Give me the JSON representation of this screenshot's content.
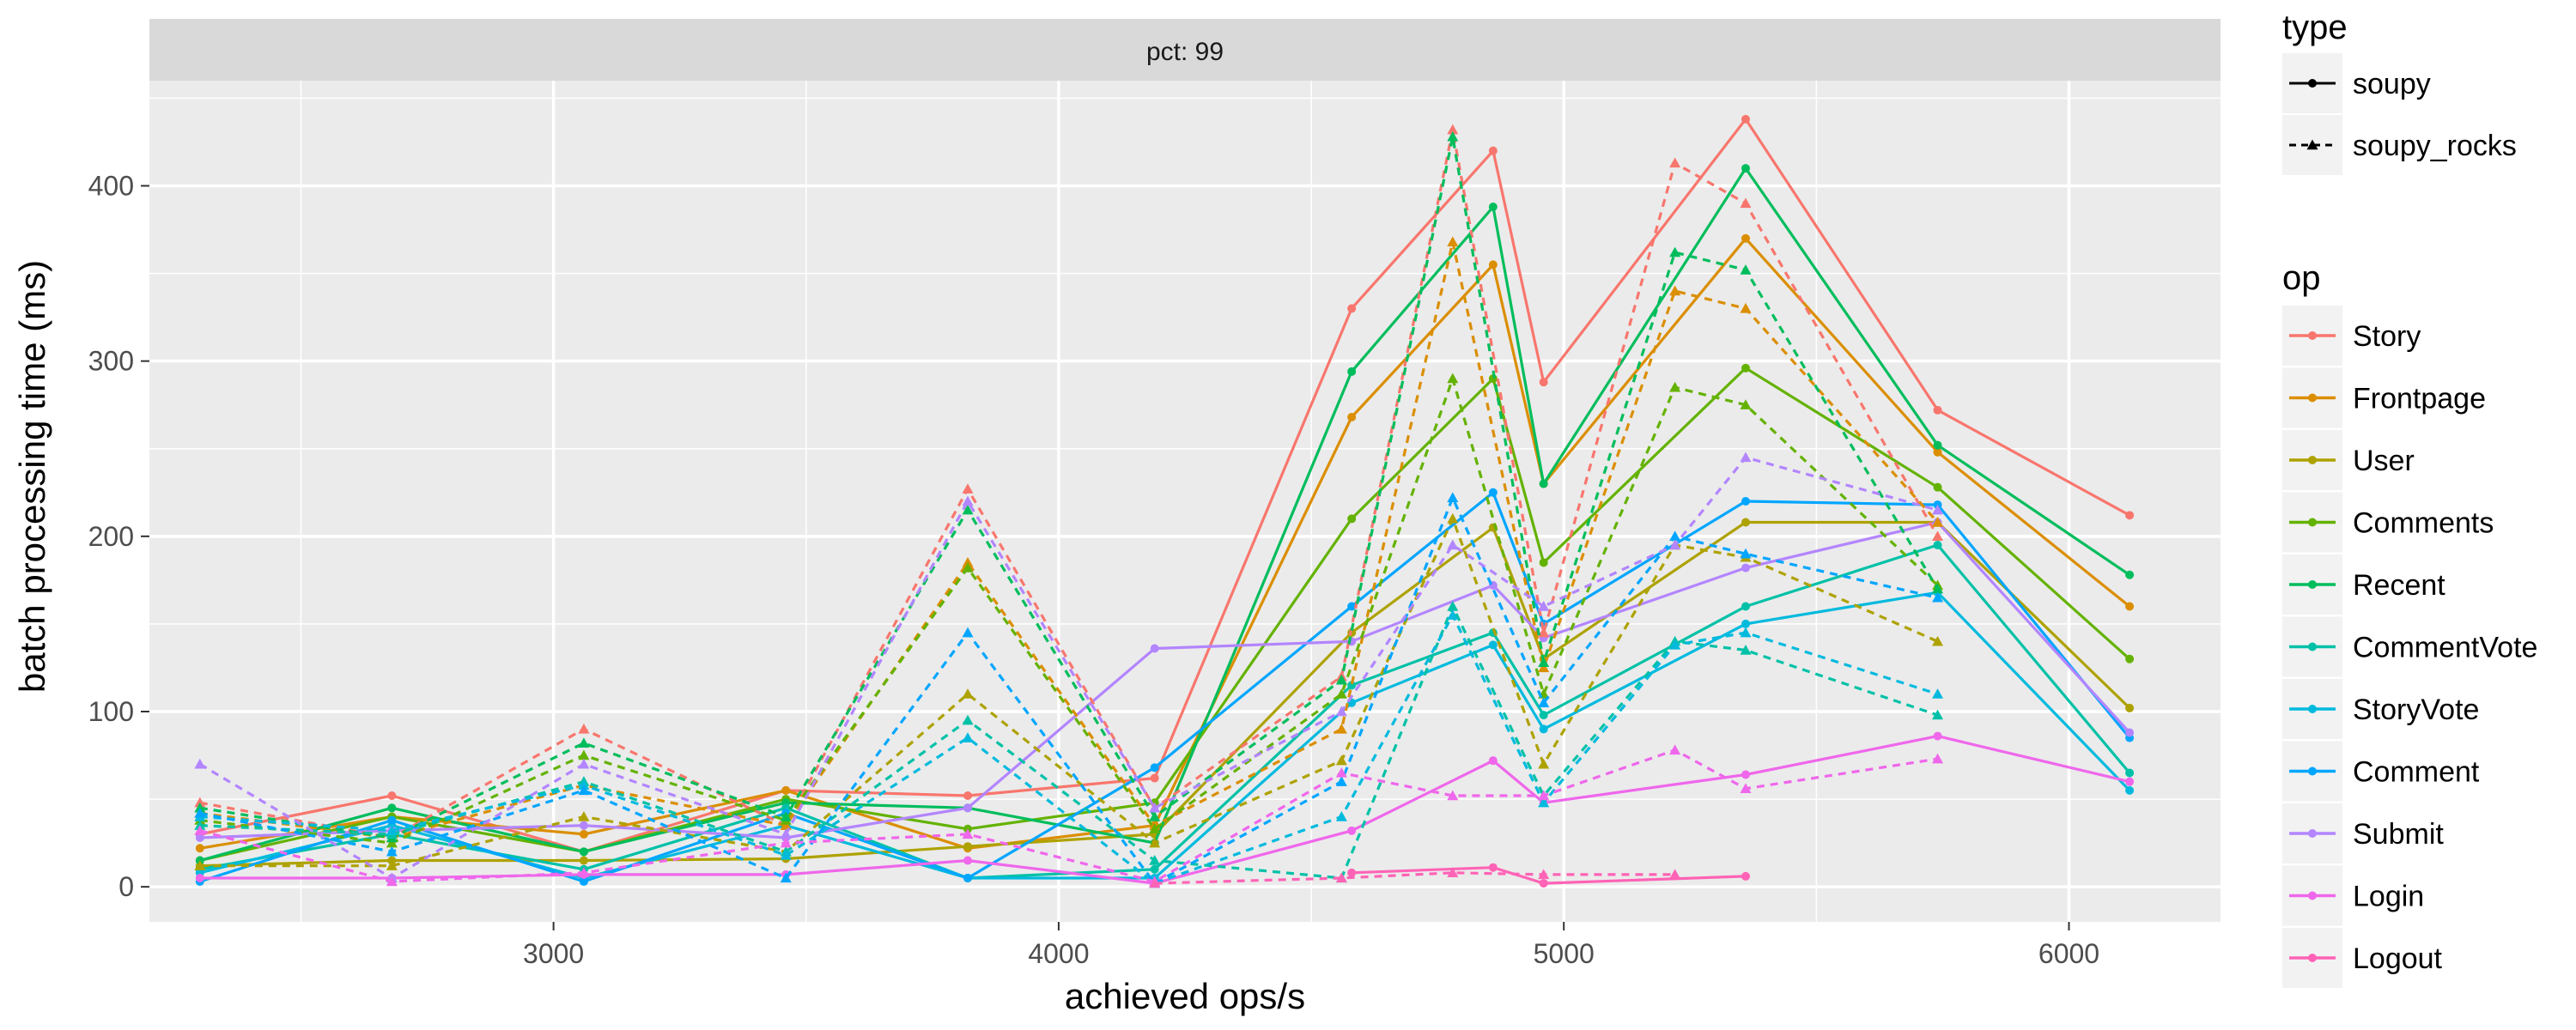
{
  "chart_data": {
    "type": "line",
    "facet_label": "pct: 99",
    "xlabel": "achieved ops/s",
    "ylabel": "batch processing time (ms)",
    "xlim": [
      2200,
      6300
    ],
    "ylim": [
      -20,
      460
    ],
    "x_ticks": [
      3000,
      4000,
      5000,
      6000
    ],
    "y_ticks": [
      0,
      100,
      200,
      300,
      400
    ],
    "grid": true,
    "legend_type_title": "type",
    "legend_op_title": "op",
    "types": [
      {
        "name": "soupy",
        "dash": "solid",
        "marker": "circle"
      },
      {
        "name": "soupy_rocks",
        "dash": "dashed",
        "marker": "triangle"
      }
    ],
    "ops": [
      {
        "name": "Story",
        "color": "#F8766D"
      },
      {
        "name": "Frontpage",
        "color": "#DB8E00"
      },
      {
        "name": "User",
        "color": "#AEA200"
      },
      {
        "name": "Comments",
        "color": "#64B200"
      },
      {
        "name": "Recent",
        "color": "#00BD5C"
      },
      {
        "name": "CommentVote",
        "color": "#00C1A7"
      },
      {
        "name": "StoryVote",
        "color": "#00BADE"
      },
      {
        "name": "Comment",
        "color": "#00A6FF"
      },
      {
        "name": "Submit",
        "color": "#B385FF"
      },
      {
        "name": "Login",
        "color": "#EF67EB"
      },
      {
        "name": "Logout",
        "color": "#FF63B6"
      }
    ],
    "series": [
      {
        "op": "Story",
        "type": "soupy",
        "points": [
          [
            2300,
            30
          ],
          [
            2680,
            52
          ],
          [
            3060,
            20
          ],
          [
            3460,
            55
          ],
          [
            3820,
            52
          ],
          [
            4190,
            62
          ],
          [
            4580,
            330
          ],
          [
            4860,
            420
          ],
          [
            4960,
            288
          ],
          [
            5360,
            438
          ],
          [
            5740,
            272
          ],
          [
            6120,
            212
          ]
        ]
      },
      {
        "op": "Frontpage",
        "type": "soupy",
        "points": [
          [
            2300,
            22
          ],
          [
            2680,
            40
          ],
          [
            3060,
            30
          ],
          [
            3460,
            55
          ],
          [
            3820,
            22
          ],
          [
            4190,
            35
          ],
          [
            4580,
            268
          ],
          [
            4860,
            355
          ],
          [
            4960,
            230
          ],
          [
            5360,
            370
          ],
          [
            5740,
            248
          ],
          [
            6120,
            160
          ]
        ]
      },
      {
        "op": "User",
        "type": "soupy",
        "points": [
          [
            2300,
            12
          ],
          [
            2680,
            15
          ],
          [
            3060,
            15
          ],
          [
            3460,
            16
          ],
          [
            3820,
            23
          ],
          [
            4190,
            30
          ],
          [
            4580,
            145
          ],
          [
            4860,
            205
          ],
          [
            4960,
            130
          ],
          [
            5360,
            208
          ],
          [
            5740,
            208
          ],
          [
            6120,
            102
          ]
        ]
      },
      {
        "op": "Comments",
        "type": "soupy",
        "points": [
          [
            2300,
            15
          ],
          [
            2680,
            40
          ],
          [
            3060,
            20
          ],
          [
            3460,
            50
          ],
          [
            3820,
            33
          ],
          [
            4190,
            48
          ],
          [
            4580,
            210
          ],
          [
            4860,
            290
          ],
          [
            4960,
            185
          ],
          [
            5360,
            296
          ],
          [
            5740,
            228
          ],
          [
            6120,
            130
          ]
        ]
      },
      {
        "op": "Recent",
        "type": "soupy",
        "points": [
          [
            2300,
            15
          ],
          [
            2680,
            45
          ],
          [
            3060,
            20
          ],
          [
            3460,
            48
          ],
          [
            3820,
            45
          ],
          [
            4190,
            25
          ],
          [
            4580,
            294
          ],
          [
            4860,
            388
          ],
          [
            4960,
            230
          ],
          [
            5360,
            410
          ],
          [
            5740,
            252
          ],
          [
            6120,
            178
          ]
        ]
      },
      {
        "op": "CommentVote",
        "type": "soupy",
        "points": [
          [
            2300,
            10
          ],
          [
            2680,
            30
          ],
          [
            3060,
            10
          ],
          [
            3460,
            45
          ],
          [
            3820,
            5
          ],
          [
            4190,
            10
          ],
          [
            4580,
            115
          ],
          [
            4860,
            145
          ],
          [
            4960,
            98
          ],
          [
            5360,
            160
          ],
          [
            5740,
            195
          ],
          [
            6120,
            65
          ]
        ]
      },
      {
        "op": "StoryVote",
        "type": "soupy",
        "points": [
          [
            2300,
            8
          ],
          [
            2680,
            35
          ],
          [
            3060,
            5
          ],
          [
            3460,
            35
          ],
          [
            3820,
            5
          ],
          [
            4190,
            5
          ],
          [
            4580,
            105
          ],
          [
            4860,
            138
          ],
          [
            4960,
            90
          ],
          [
            5360,
            150
          ],
          [
            5740,
            168
          ],
          [
            6120,
            55
          ]
        ]
      },
      {
        "op": "Comment",
        "type": "soupy",
        "points": [
          [
            2300,
            3
          ],
          [
            2680,
            38
          ],
          [
            3060,
            3
          ],
          [
            3460,
            42
          ],
          [
            3820,
            5
          ],
          [
            4190,
            68
          ],
          [
            4580,
            160
          ],
          [
            4860,
            225
          ],
          [
            4960,
            150
          ],
          [
            5360,
            220
          ],
          [
            5740,
            218
          ],
          [
            6120,
            85
          ]
        ]
      },
      {
        "op": "Submit",
        "type": "soupy",
        "points": [
          [
            2300,
            28
          ],
          [
            2680,
            32
          ],
          [
            3060,
            35
          ],
          [
            3460,
            28
          ],
          [
            3820,
            45
          ],
          [
            4190,
            136
          ],
          [
            4580,
            140
          ],
          [
            4860,
            172
          ],
          [
            4960,
            142
          ],
          [
            5360,
            182
          ],
          [
            5740,
            208
          ],
          [
            6120,
            88
          ]
        ]
      },
      {
        "op": "Login",
        "type": "soupy",
        "points": [
          [
            2300,
            5
          ],
          [
            2680,
            5
          ],
          [
            3060,
            7
          ],
          [
            3460,
            7
          ],
          [
            3820,
            15
          ],
          [
            4190,
            2
          ],
          [
            4580,
            32
          ],
          [
            4860,
            72
          ],
          [
            4960,
            48
          ],
          [
            5360,
            64
          ],
          [
            5740,
            86
          ],
          [
            6120,
            60
          ]
        ]
      },
      {
        "op": "Logout",
        "type": "soupy",
        "points": [
          [
            4580,
            8
          ],
          [
            4860,
            11
          ],
          [
            4960,
            2
          ],
          [
            5360,
            6
          ]
        ]
      },
      {
        "op": "Story",
        "type": "soupy_rocks",
        "points": [
          [
            2300,
            48
          ],
          [
            2680,
            28
          ],
          [
            3060,
            90
          ],
          [
            3460,
            35
          ],
          [
            3820,
            227
          ],
          [
            4190,
            45
          ],
          [
            4560,
            120
          ],
          [
            4780,
            432
          ],
          [
            4960,
            145
          ],
          [
            5220,
            413
          ],
          [
            5360,
            390
          ],
          [
            5740,
            200
          ]
        ]
      },
      {
        "op": "Frontpage",
        "type": "soupy_rocks",
        "points": [
          [
            2300,
            42
          ],
          [
            2680,
            28
          ],
          [
            3060,
            58
          ],
          [
            3460,
            35
          ],
          [
            3820,
            185
          ],
          [
            4190,
            35
          ],
          [
            4560,
            90
          ],
          [
            4780,
            368
          ],
          [
            4960,
            125
          ],
          [
            5220,
            340
          ],
          [
            5360,
            330
          ],
          [
            5740,
            208
          ]
        ]
      },
      {
        "op": "User",
        "type": "soupy_rocks",
        "points": [
          [
            2300,
            12
          ],
          [
            2680,
            12
          ],
          [
            3060,
            40
          ],
          [
            3460,
            20
          ],
          [
            3820,
            110
          ],
          [
            4190,
            25
          ],
          [
            4560,
            72
          ],
          [
            4780,
            210
          ],
          [
            4960,
            70
          ],
          [
            5220,
            195
          ],
          [
            5360,
            188
          ],
          [
            5740,
            140
          ]
        ]
      },
      {
        "op": "Comments",
        "type": "soupy_rocks",
        "points": [
          [
            2300,
            38
          ],
          [
            2680,
            25
          ],
          [
            3060,
            75
          ],
          [
            3460,
            38
          ],
          [
            3820,
            182
          ],
          [
            4190,
            33
          ],
          [
            4560,
            110
          ],
          [
            4780,
            290
          ],
          [
            4960,
            110
          ],
          [
            5220,
            285
          ],
          [
            5360,
            275
          ],
          [
            5740,
            172
          ]
        ]
      },
      {
        "op": "Recent",
        "type": "soupy_rocks",
        "points": [
          [
            2300,
            45
          ],
          [
            2680,
            28
          ],
          [
            3060,
            82
          ],
          [
            3460,
            40
          ],
          [
            3820,
            215
          ],
          [
            4190,
            40
          ],
          [
            4560,
            118
          ],
          [
            4780,
            428
          ],
          [
            4960,
            128
          ],
          [
            5220,
            362
          ],
          [
            5360,
            352
          ],
          [
            5740,
            170
          ]
        ]
      },
      {
        "op": "CommentVote",
        "type": "soupy_rocks",
        "points": [
          [
            2300,
            35
          ],
          [
            2680,
            30
          ],
          [
            3060,
            60
          ],
          [
            3460,
            20
          ],
          [
            3820,
            95
          ],
          [
            4190,
            15
          ],
          [
            4560,
            5
          ],
          [
            4780,
            160
          ],
          [
            4960,
            52
          ],
          [
            5220,
            140
          ],
          [
            5360,
            135
          ],
          [
            5740,
            98
          ]
        ]
      },
      {
        "op": "StoryVote",
        "type": "soupy_rocks",
        "points": [
          [
            2300,
            40
          ],
          [
            2680,
            32
          ],
          [
            3060,
            58
          ],
          [
            3460,
            18
          ],
          [
            3820,
            85
          ],
          [
            4190,
            2
          ],
          [
            4560,
            40
          ],
          [
            4780,
            155
          ],
          [
            4960,
            48
          ],
          [
            5220,
            138
          ],
          [
            5360,
            145
          ],
          [
            5740,
            110
          ]
        ]
      },
      {
        "op": "Comment",
        "type": "soupy_rocks",
        "points": [
          [
            2300,
            42
          ],
          [
            2680,
            20
          ],
          [
            3060,
            55
          ],
          [
            3460,
            5
          ],
          [
            3820,
            145
          ],
          [
            4190,
            2
          ],
          [
            4560,
            60
          ],
          [
            4780,
            222
          ],
          [
            4960,
            105
          ],
          [
            5220,
            200
          ],
          [
            5360,
            190
          ],
          [
            5740,
            165
          ]
        ]
      },
      {
        "op": "Submit",
        "type": "soupy_rocks",
        "points": [
          [
            2300,
            70
          ],
          [
            2680,
            5
          ],
          [
            3060,
            70
          ],
          [
            3460,
            30
          ],
          [
            3820,
            220
          ],
          [
            4190,
            45
          ],
          [
            4560,
            100
          ],
          [
            4780,
            195
          ],
          [
            4960,
            160
          ],
          [
            5220,
            195
          ],
          [
            5360,
            245
          ],
          [
            5740,
            215
          ]
        ]
      },
      {
        "op": "Login",
        "type": "soupy_rocks",
        "points": [
          [
            2300,
            32
          ],
          [
            2680,
            3
          ],
          [
            3060,
            8
          ],
          [
            3460,
            25
          ],
          [
            3820,
            30
          ],
          [
            4190,
            3
          ],
          [
            4560,
            65
          ],
          [
            4780,
            52
          ],
          [
            4960,
            52
          ],
          [
            5220,
            78
          ],
          [
            5360,
            56
          ],
          [
            5740,
            73
          ]
        ]
      },
      {
        "op": "Logout",
        "type": "soupy_rocks",
        "points": [
          [
            4190,
            2
          ],
          [
            4560,
            5
          ],
          [
            4780,
            8
          ],
          [
            4960,
            7
          ],
          [
            5220,
            7
          ]
        ]
      }
    ]
  }
}
